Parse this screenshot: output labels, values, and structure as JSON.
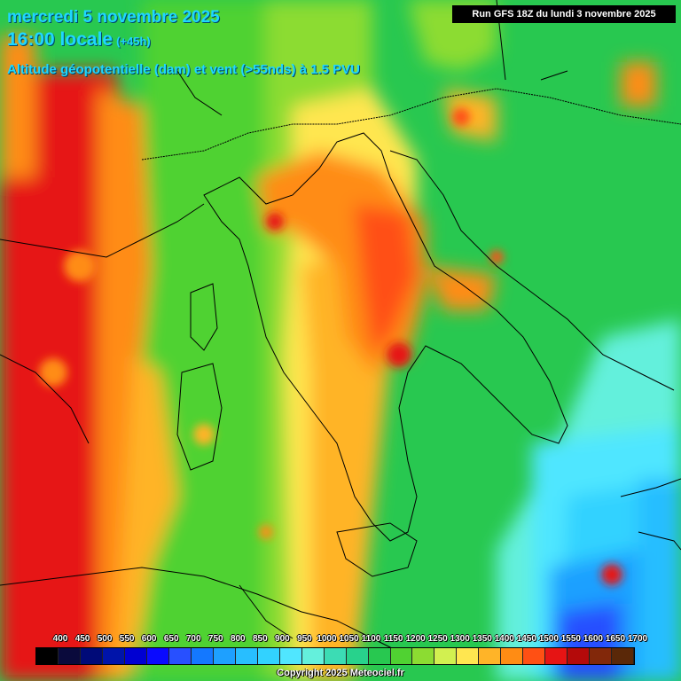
{
  "header": {
    "date_line": "mercredi 5 novembre 2025",
    "time_label": "16:00 locale",
    "lead_time": "(+45h)",
    "field_description": "Altitude géopotentielle (dam) et vent (>55nds) à 1.5 PVU"
  },
  "run_info": "Run GFS 18Z du lundi 3 novembre 2025",
  "legend": {
    "labels": [
      "400",
      "450",
      "500",
      "550",
      "600",
      "650",
      "700",
      "750",
      "800",
      "850",
      "900",
      "950",
      "1000",
      "1050",
      "1100",
      "1150",
      "1200",
      "1250",
      "1300",
      "1350",
      "1400",
      "1450",
      "1500",
      "1550",
      "1600",
      "1650",
      "1700"
    ],
    "colors": [
      "#000000",
      "#0a0a3c",
      "#000a78",
      "#0014aa",
      "#0000d2",
      "#0a0aff",
      "#2850ff",
      "#1478ff",
      "#1ea0ff",
      "#28beff",
      "#32d2ff",
      "#50e6ff",
      "#64f0dc",
      "#3cdcb4",
      "#28d28c",
      "#28c850",
      "#50d232",
      "#8cdc32",
      "#d2f050",
      "#ffe650",
      "#ffb428",
      "#ff8c14",
      "#ff5014",
      "#e61414",
      "#b40a0a",
      "#82280a",
      "#5a2808"
    ]
  },
  "copyright": "Copyright 2025 Meteociel.fr"
}
